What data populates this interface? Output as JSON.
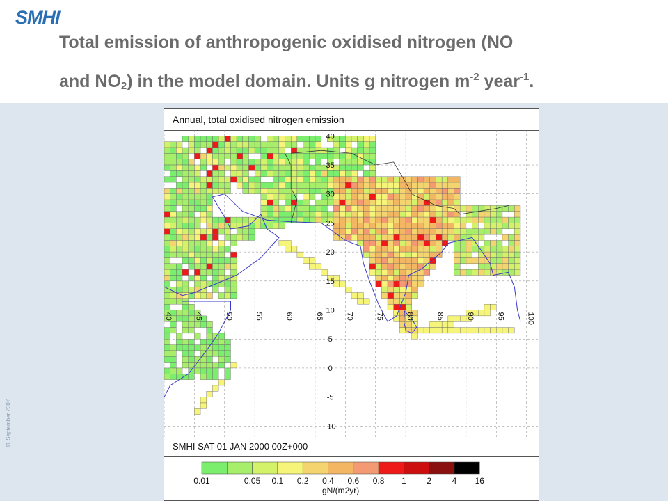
{
  "header": {
    "logo": "SMHI",
    "title_parts": {
      "line1": "Total emission of anthropogenic oxidised nitrogen (NO",
      "line2a": "and NO",
      "sub2": "2",
      "line2b": ") in the model domain. Units g nitrogen m",
      "sup_a": "-2",
      "line2c": " year",
      "sup_b": "-1",
      "line2d": "."
    }
  },
  "sidebar": {
    "date": "11 September 2007"
  },
  "figure": {
    "title": "Annual, total oxidised nitrogen emission",
    "footer": "SMHI SAT 01 JAN 2000 00Z+000"
  },
  "map_data": {
    "lon_labels": [
      "40",
      "45",
      "50",
      "55",
      "60",
      "65",
      "70",
      "75",
      "80",
      "85",
      "90",
      "95",
      "100"
    ],
    "lat_labels": [
      "40",
      "35",
      "30",
      "25",
      "20",
      "15",
      "10",
      "5",
      "0",
      "-5",
      "-10"
    ],
    "lon_range": [
      40,
      102
    ],
    "lat_range": [
      -12,
      41
    ]
  },
  "legend": {
    "labels": [
      "0.01",
      "0.05",
      "0.1",
      "0.2",
      "0.4",
      "0.6",
      "0.8",
      "1",
      "2",
      "4",
      "16"
    ],
    "colors": [
      "#7cee6e",
      "#a7ee6a",
      "#d3f26a",
      "#f6f57a",
      "#f4d46f",
      "#f3b764",
      "#f39a74",
      "#ee1a1a",
      "#cc0e0e",
      "#8a0f0f",
      "#000000"
    ],
    "unit": "gN/(m2yr)"
  }
}
